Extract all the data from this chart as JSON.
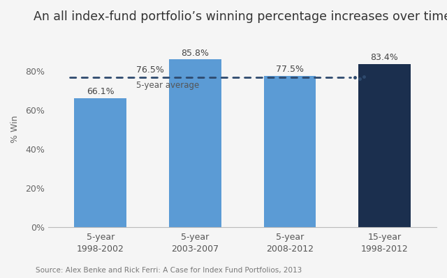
{
  "title": "An all index-fund portfolio’s winning percentage increases over time",
  "categories": [
    "5-year\n1998-2002",
    "5-year\n2003-2007",
    "5-year\n2008-2012",
    "15-year\n1998-2012"
  ],
  "values": [
    66.1,
    85.8,
    77.5,
    83.4
  ],
  "bar_colors": [
    "#5b9bd5",
    "#5b9bd5",
    "#5b9bd5",
    "#1b2f4e"
  ],
  "bar_labels": [
    "66.1%",
    "85.8%",
    "77.5%",
    "83.4%"
  ],
  "avg_line_y": 76.5,
  "avg_line_label": "76.5%",
  "avg_label_text": "5-year average",
  "ylabel": "% Win",
  "ylim": [
    0,
    100
  ],
  "yticks": [
    0,
    20,
    40,
    60,
    80
  ],
  "ytick_labels": [
    "0%",
    "20%",
    "40%",
    "60%",
    "80%"
  ],
  "source_text": "Source: Alex Benke and Rick Ferri: A Case for Index Fund Portfolios, 2013",
  "bg_color": "#f5f5f5",
  "plot_bg_color": "#f5f5f5",
  "title_fontsize": 12.5,
  "label_fontsize": 9,
  "tick_fontsize": 9,
  "source_fontsize": 7.5,
  "ylabel_fontsize": 9,
  "avg_line_color": "#2e4a6e",
  "bar_width": 0.55
}
